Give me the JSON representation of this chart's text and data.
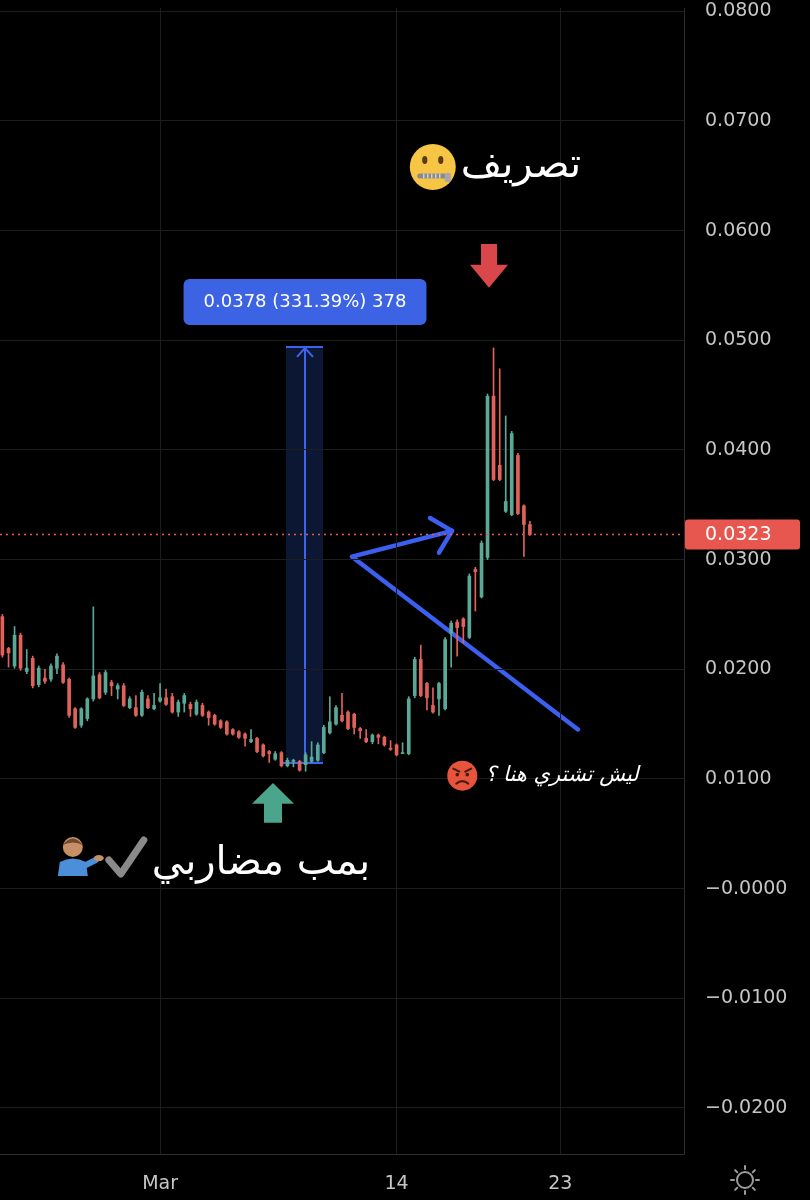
{
  "chart_data": {
    "type": "candlestick",
    "x": [
      -7.67,
      -7.33,
      -7,
      -6.67,
      -6.33,
      -6,
      -5.67,
      -5.33,
      -5,
      -4.67,
      -4.33,
      -4,
      -3.67,
      -3.33,
      -3,
      -2.67,
      -2.33,
      -2,
      -1.67,
      -1.33,
      -1,
      -0.67,
      -0.33,
      0,
      0.33,
      0.67,
      1,
      1.33,
      1.67,
      2,
      2.33,
      2.67,
      3,
      3.33,
      3.67,
      4,
      4.33,
      4.67,
      5,
      5.33,
      5.67,
      6,
      6.33,
      6.67,
      7,
      7.33,
      7.67,
      8,
      8.33,
      8.67,
      9,
      9.33,
      9.67,
      10,
      10.33,
      10.67,
      11,
      11.33,
      11.67,
      12,
      12.33,
      12.67,
      13,
      13.33,
      13.67,
      14,
      14.33,
      14.67,
      15,
      15.33,
      15.67,
      16,
      16.33,
      16.67,
      17,
      17.33,
      17.67,
      18,
      18.33,
      18.67,
      19,
      19.33,
      19.67,
      20,
      20.33,
      20.67,
      21,
      21.33
    ],
    "ohlc": [
      [
        0.0248,
        0.025,
        0.0211,
        0.0213
      ],
      [
        0.0219,
        0.022,
        0.0202,
        0.0215
      ],
      [
        0.0203,
        0.0239,
        0.0201,
        0.0231
      ],
      [
        0.0231,
        0.0233,
        0.0199,
        0.0201
      ],
      [
        0.0198,
        0.0218,
        0.0196,
        0.0201
      ],
      [
        0.021,
        0.0212,
        0.0183,
        0.0185
      ],
      [
        0.0186,
        0.0203,
        0.0184,
        0.0201
      ],
      [
        0.0192,
        0.02,
        0.0187,
        0.0189
      ],
      [
        0.0191,
        0.0205,
        0.0189,
        0.0203
      ],
      [
        0.0201,
        0.0214,
        0.0196,
        0.0212
      ],
      [
        0.0204,
        0.0206,
        0.0187,
        0.0188
      ],
      [
        0.0191,
        0.0192,
        0.0156,
        0.0158
      ],
      [
        0.0164,
        0.0165,
        0.0146,
        0.0147
      ],
      [
        0.0149,
        0.0165,
        0.0147,
        0.0164
      ],
      [
        0.0155,
        0.0174,
        0.0153,
        0.0173
      ],
      [
        0.0173,
        0.0257,
        0.0171,
        0.0194
      ],
      [
        0.0195,
        0.0197,
        0.0173,
        0.0174
      ],
      [
        0.0179,
        0.0199,
        0.0177,
        0.0197
      ],
      [
        0.0188,
        0.019,
        0.0176,
        0.0185
      ],
      [
        0.0182,
        0.0187,
        0.0173,
        0.0185
      ],
      [
        0.0185,
        0.0187,
        0.0166,
        0.0167
      ],
      [
        0.0165,
        0.0175,
        0.0164,
        0.0173
      ],
      [
        0.0165,
        0.0176,
        0.0157,
        0.0158
      ],
      [
        0.0158,
        0.0181,
        0.0157,
        0.0179
      ],
      [
        0.0173,
        0.0176,
        0.0164,
        0.0165
      ],
      [
        0.0164,
        0.0178,
        0.0163,
        0.0167
      ],
      [
        0.0171,
        0.0187,
        0.017,
        0.0174
      ],
      [
        0.0174,
        0.0182,
        0.0167,
        0.0168
      ],
      [
        0.0175,
        0.0178,
        0.016,
        0.0161
      ],
      [
        0.0161,
        0.0172,
        0.0157,
        0.017
      ],
      [
        0.0169,
        0.0178,
        0.0161,
        0.0176
      ],
      [
        0.0168,
        0.017,
        0.0157,
        0.0164
      ],
      [
        0.0159,
        0.0172,
        0.0158,
        0.017
      ],
      [
        0.0167,
        0.0169,
        0.0157,
        0.0158
      ],
      [
        0.0161,
        0.0162,
        0.0149,
        0.0156
      ],
      [
        0.0158,
        0.0159,
        0.0149,
        0.015
      ],
      [
        0.0153,
        0.0154,
        0.0146,
        0.0147
      ],
      [
        0.0152,
        0.0153,
        0.014,
        0.0141
      ],
      [
        0.0145,
        0.0146,
        0.014,
        0.0141
      ],
      [
        0.0143,
        0.0144,
        0.0137,
        0.0138
      ],
      [
        0.0141,
        0.0142,
        0.013,
        0.0137
      ],
      [
        0.0134,
        0.0145,
        0.0133,
        0.0136
      ],
      [
        0.0137,
        0.0138,
        0.0124,
        0.0125
      ],
      [
        0.0131,
        0.0132,
        0.012,
        0.0121
      ],
      [
        0.0125,
        0.0126,
        0.0115,
        0.0123
      ],
      [
        0.0118,
        0.0125,
        0.0117,
        0.0123
      ],
      [
        0.0124,
        0.0125,
        0.0111,
        0.0112
      ],
      [
        0.0112,
        0.0119,
        0.0111,
        0.0117
      ],
      [
        0.0116,
        0.0118,
        0.0111,
        0.0117
      ],
      [
        0.0116,
        0.0117,
        0.0107,
        0.0108
      ],
      [
        0.0113,
        0.0124,
        0.0107,
        0.0122
      ],
      [
        0.0116,
        0.0134,
        0.0115,
        0.012
      ],
      [
        0.0117,
        0.0133,
        0.0116,
        0.0131
      ],
      [
        0.0124,
        0.0149,
        0.0123,
        0.0147
      ],
      [
        0.0142,
        0.0175,
        0.0141,
        0.0152
      ],
      [
        0.015,
        0.0167,
        0.0149,
        0.0165
      ],
      [
        0.0158,
        0.0178,
        0.0152,
        0.0153
      ],
      [
        0.0161,
        0.0162,
        0.0145,
        0.0146
      ],
      [
        0.0159,
        0.016,
        0.0141,
        0.0147
      ],
      [
        0.0146,
        0.0147,
        0.0137,
        0.0144
      ],
      [
        0.0137,
        0.0145,
        0.0133,
        0.0134
      ],
      [
        0.0134,
        0.0141,
        0.0132,
        0.014
      ],
      [
        0.014,
        0.0141,
        0.0132,
        0.0138
      ],
      [
        0.0138,
        0.0139,
        0.013,
        0.0131
      ],
      [
        0.0128,
        0.0135,
        0.0126,
        0.0127
      ],
      [
        0.0131,
        0.0132,
        0.0121,
        0.0122
      ],
      [
        0.0124,
        0.0133,
        0.0123,
        0.0124
      ],
      [
        0.0123,
        0.0175,
        0.0122,
        0.0173
      ],
      [
        0.0176,
        0.0211,
        0.0174,
        0.0209
      ],
      [
        0.0209,
        0.0222,
        0.0175,
        0.0176
      ],
      [
        0.0187,
        0.0188,
        0.0163,
        0.0174
      ],
      [
        0.0167,
        0.0183,
        0.016,
        0.0161
      ],
      [
        0.0173,
        0.0188,
        0.0158,
        0.0187
      ],
      [
        0.0164,
        0.0229,
        0.0163,
        0.0227
      ],
      [
        0.0233,
        0.0244,
        0.0202,
        0.0242
      ],
      [
        0.0243,
        0.0245,
        0.0212,
        0.0238
      ],
      [
        0.0246,
        0.0247,
        0.0224,
        0.0239
      ],
      [
        0.0229,
        0.0287,
        0.0228,
        0.0285
      ],
      [
        0.0291,
        0.0293,
        0.0253,
        0.0289
      ],
      [
        0.0266,
        0.0317,
        0.0265,
        0.0315
      ],
      [
        0.0302,
        0.0451,
        0.03,
        0.0449
      ],
      [
        0.0449,
        0.0493,
        0.0372,
        0.0373
      ],
      [
        0.0386,
        0.0474,
        0.0372,
        0.0373
      ],
      [
        0.0344,
        0.0431,
        0.0343,
        0.0353
      ],
      [
        0.0341,
        0.0417,
        0.034,
        0.0415
      ],
      [
        0.0395,
        0.0397,
        0.0341,
        0.0342
      ],
      [
        0.0349,
        0.035,
        0.0303,
        0.0332
      ],
      [
        0.0332,
        0.0335,
        0.0322,
        0.0323
      ]
    ],
    "colors": [
      "#e0625b",
      "#e0625b",
      "#5aa896",
      "#e0625b",
      "#5aa896",
      "#e0625b",
      "#5aa896",
      "#e0625b",
      "#5aa896",
      "#5aa896",
      "#e0625b",
      "#e0625b",
      "#e0625b",
      "#5aa896",
      "#5aa896",
      "#5aa896",
      "#e0625b",
      "#5aa896",
      "#e0625b",
      "#5aa896",
      "#e0625b",
      "#5aa896",
      "#e0625b",
      "#5aa896",
      "#e0625b",
      "#5aa896",
      "#5aa896",
      "#e0625b",
      "#e0625b",
      "#5aa896",
      "#5aa896",
      "#e0625b",
      "#5aa896",
      "#e0625b",
      "#e0625b",
      "#e0625b",
      "#e0625b",
      "#e0625b",
      "#e0625b",
      "#e0625b",
      "#e0625b",
      "#5aa896",
      "#e0625b",
      "#e0625b",
      "#e0625b",
      "#5aa896",
      "#e0625b",
      "#5aa896",
      "#5aa896",
      "#e0625b",
      "#5aa896",
      "#5aa896",
      "#5aa896",
      "#5aa896",
      "#5aa896",
      "#5aa896",
      "#e0625b",
      "#e0625b",
      "#e0625b",
      "#e0625b",
      "#e0625b",
      "#5aa896",
      "#e0625b",
      "#e0625b",
      "#e0625b",
      "#e0625b",
      "#5aa896",
      "#5aa896",
      "#5aa896",
      "#e0625b",
      "#e0625b",
      "#e0625b",
      "#5aa896",
      "#5aa896",
      "#5aa896",
      "#e0625b",
      "#e0625b",
      "#5aa896",
      "#e0625b",
      "#5aa896",
      "#5aa896",
      "#e0625b",
      "#e0625b",
      "#5aa896",
      "#5aa896",
      "#e0625b",
      "#e0625b",
      "#e0625b"
    ],
    "xlim": [
      -7.8,
      29.8
    ],
    "xticks": [
      {
        "value": 1,
        "label": "Mar"
      },
      14,
      23
    ],
    "ylim": [
      -0.0242,
      0.0803
    ],
    "yticks": [
      {
        "value": 0.08,
        "label": "0.0800"
      },
      {
        "value": 0.07,
        "label": "0.0700"
      },
      {
        "value": 0.06,
        "label": "0.0600"
      },
      {
        "value": 0.05,
        "label": "0.0500"
      },
      {
        "value": 0.04,
        "label": "0.0400"
      },
      {
        "value": 0.03,
        "label": "0.0300"
      },
      {
        "value": 0.02,
        "label": "0.0200"
      },
      {
        "value": 0.01,
        "label": "0.0100"
      },
      {
        "value": 0,
        "label": "−0.0000"
      },
      {
        "value": -0.01,
        "label": "−0.0100"
      },
      {
        "value": -0.02,
        "label": "−0.0200"
      }
    ],
    "grid": true,
    "ref_lines": [
      {
        "axis": "y",
        "value": 0.0323,
        "label": "0.0323",
        "color": "#e8574f",
        "line_style": "dotted"
      }
    ],
    "annotations": [
      "تصريف",
      "0.0378 (331.39%) 378",
      "ليش تشتري هنا ؟",
      "بمب مضاربي"
    ]
  }
}
